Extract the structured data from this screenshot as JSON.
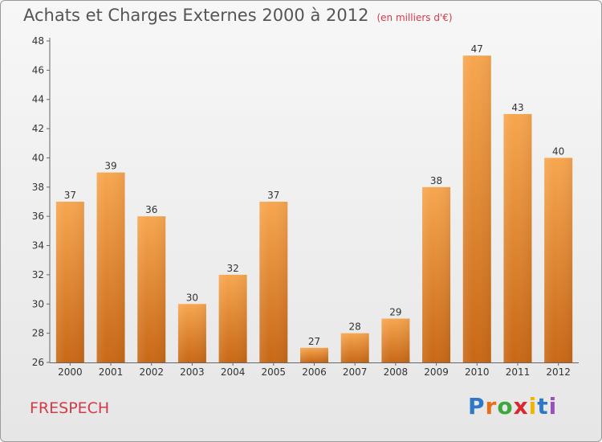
{
  "title": "Achats et Charges Externes 2000 à 2012",
  "unit_note": "(en milliers d'€)",
  "commune": "FRESPECH",
  "logo": {
    "text": "Proxiti",
    "letter_colors": [
      "#2f78c8",
      "#e86f1a",
      "#3aa83a",
      "#d8292f",
      "#f2b400",
      "#2f78c8",
      "#9a4fc0"
    ]
  },
  "colors": {
    "bar_top": "#f7a64f",
    "bar_bottom": "#c86816",
    "title": "#555555",
    "accent": "#d23a48"
  },
  "chart_data": {
    "type": "bar",
    "categories": [
      "2000",
      "2001",
      "2002",
      "2003",
      "2004",
      "2005",
      "2006",
      "2007",
      "2008",
      "2009",
      "2010",
      "2011",
      "2012"
    ],
    "values": [
      37,
      39,
      36,
      30,
      32,
      37,
      27,
      28,
      29,
      38,
      47,
      43,
      40
    ],
    "ylim": [
      26,
      48
    ],
    "yticks": [
      26,
      28,
      30,
      32,
      34,
      36,
      38,
      40,
      42,
      44,
      46,
      48
    ],
    "xlabel": "",
    "ylabel": "",
    "grid": false,
    "data_labels": true
  }
}
